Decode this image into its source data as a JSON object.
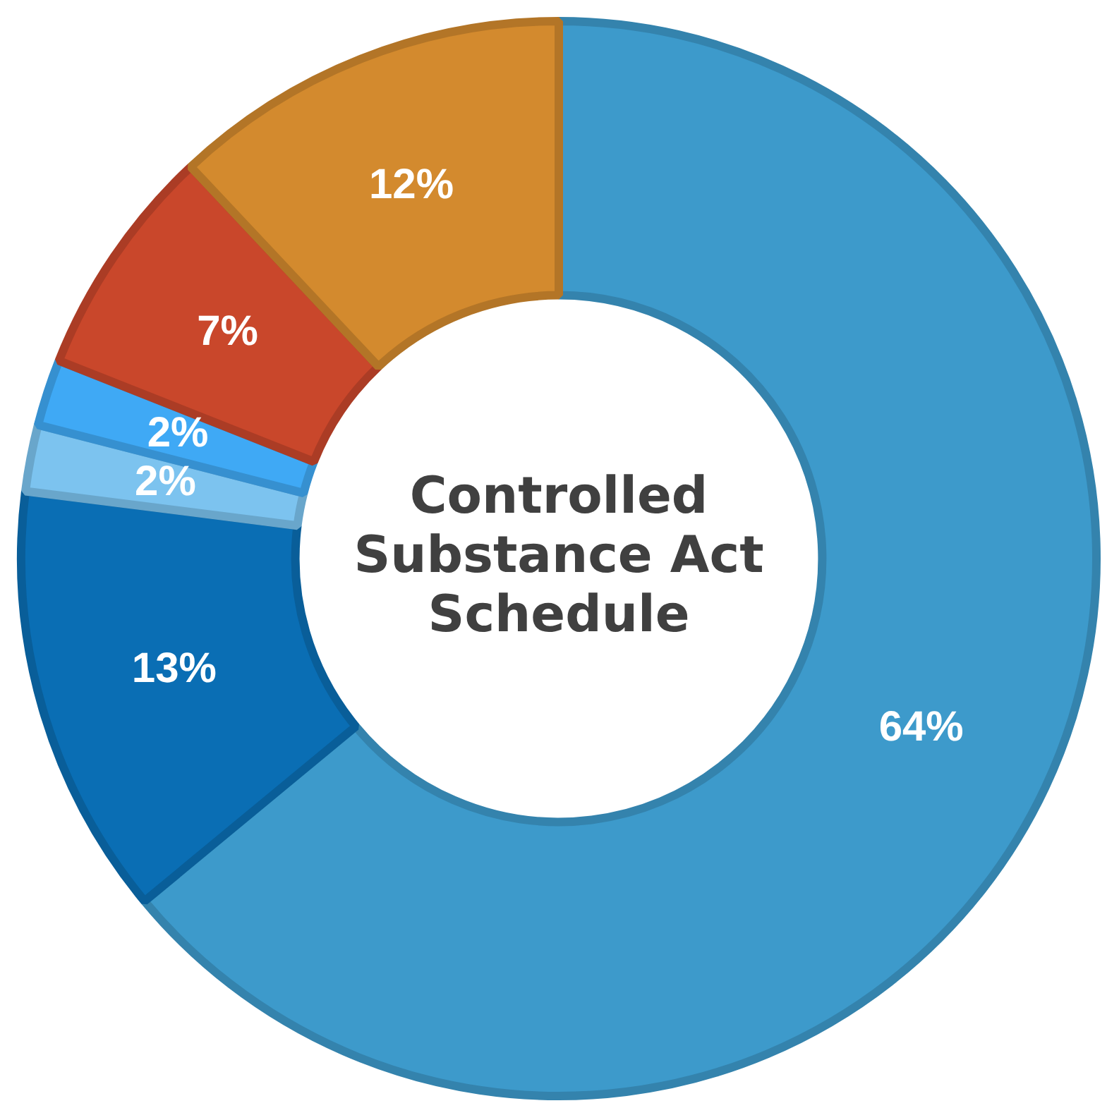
{
  "chart_data": {
    "type": "donut",
    "title": "Controlled Substance Act Schedule",
    "categories": [
      null,
      null,
      null,
      null,
      null,
      null
    ],
    "values": [
      64,
      13,
      2,
      2,
      7,
      12
    ],
    "value_labels": [
      "64%",
      "13%",
      "2%",
      "2%",
      "7%",
      "12%"
    ],
    "colors": [
      "#3d9acb",
      "#0a6eb4",
      "#7cc3ef",
      "#3fa9f5",
      "#c9472b",
      "#d38a2e"
    ]
  }
}
